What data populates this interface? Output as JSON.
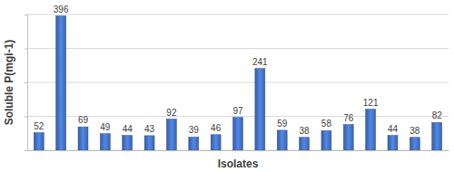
{
  "chart_data": {
    "type": "bar",
    "x_label": "Isolates",
    "y_label": "Soluble P(mgi-1)",
    "categories": [
      null,
      null,
      null,
      null,
      null,
      null,
      null,
      null,
      null,
      null,
      null,
      null,
      null,
      null,
      null,
      null,
      null,
      null,
      null
    ],
    "values": [
      52,
      396,
      69,
      49,
      44,
      43,
      92,
      39,
      46,
      97,
      241,
      59,
      38,
      58,
      76,
      121,
      44,
      38,
      82
    ],
    "color": "#4472c4",
    "ylim": [
      0,
      400
    ],
    "yticks": [
      0,
      100,
      200,
      300,
      400
    ],
    "grid": true,
    "data_labels": true,
    "tick_labels": false
  }
}
